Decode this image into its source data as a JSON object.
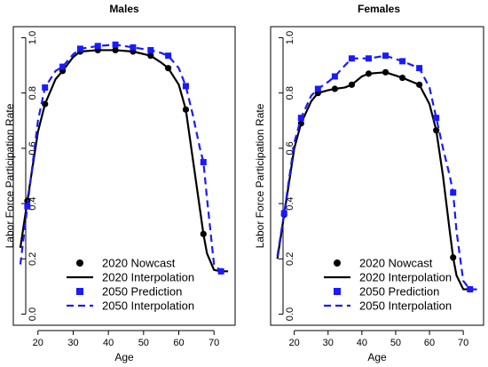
{
  "chart_data": [
    {
      "type": "line",
      "title": "Males",
      "xlabel": "Age",
      "ylabel": "Labor Force Participation Rate",
      "xticks": [
        20,
        30,
        40,
        50,
        60,
        70
      ],
      "yticks": [
        0.0,
        0.2,
        0.4,
        0.6,
        0.8,
        1.0
      ],
      "ytick_labels": [
        "0.0",
        "0.2",
        "0.4",
        "0.6",
        "0.8",
        "1.0"
      ],
      "xlim": [
        13,
        76
      ],
      "ylim": [
        -0.04,
        1.04
      ],
      "legend_position": "bottom-left",
      "grid": false,
      "series": [
        {
          "name": "2020 Nowcast",
          "style": "points-circle",
          "color": "#000000",
          "x": [
            17,
            22,
            27,
            32,
            37,
            42,
            47,
            52,
            57,
            62,
            67,
            72
          ],
          "y": [
            0.41,
            0.76,
            0.88,
            0.95,
            0.955,
            0.955,
            0.95,
            0.935,
            0.89,
            0.74,
            0.29,
            0.155
          ]
        },
        {
          "name": "2020 Interpolation",
          "style": "solid-line",
          "color": "#000000",
          "x": [
            15,
            17,
            20,
            22,
            25,
            27,
            30,
            32,
            37,
            42,
            47,
            52,
            55,
            57,
            60,
            62,
            64,
            66,
            67,
            68,
            70,
            72,
            74
          ],
          "y": [
            0.24,
            0.41,
            0.66,
            0.76,
            0.85,
            0.88,
            0.93,
            0.95,
            0.955,
            0.955,
            0.95,
            0.935,
            0.91,
            0.89,
            0.83,
            0.74,
            0.56,
            0.38,
            0.29,
            0.22,
            0.16,
            0.155,
            0.155
          ]
        },
        {
          "name": "2050 Prediction",
          "style": "points-square",
          "color": "#1a1aff",
          "x": [
            17,
            22,
            27,
            32,
            37,
            42,
            47,
            52,
            57,
            62,
            67,
            72
          ],
          "y": [
            0.39,
            0.82,
            0.895,
            0.96,
            0.97,
            0.975,
            0.965,
            0.955,
            0.935,
            0.825,
            0.55,
            0.155
          ]
        },
        {
          "name": "2050 Interpolation",
          "style": "dashed-line",
          "color": "#1a1aff",
          "x": [
            15,
            17,
            20,
            22,
            25,
            27,
            30,
            32,
            37,
            42,
            47,
            52,
            55,
            57,
            60,
            62,
            64,
            66,
            67,
            68,
            70,
            72,
            74
          ],
          "y": [
            0.18,
            0.39,
            0.7,
            0.82,
            0.88,
            0.895,
            0.94,
            0.96,
            0.97,
            0.975,
            0.965,
            0.955,
            0.945,
            0.935,
            0.89,
            0.825,
            0.72,
            0.6,
            0.55,
            0.42,
            0.18,
            0.155,
            0.155
          ]
        }
      ]
    },
    {
      "type": "line",
      "title": "Females",
      "xlabel": "Age",
      "ylabel": "Labor Force Participation Rate",
      "xticks": [
        20,
        30,
        40,
        50,
        60,
        70
      ],
      "yticks": [
        0.0,
        0.2,
        0.4,
        0.6,
        0.8,
        1.0
      ],
      "ytick_labels": [
        "0.0",
        "0.2",
        "0.4",
        "0.6",
        "0.8",
        "1.0"
      ],
      "xlim": [
        13,
        76
      ],
      "ylim": [
        -0.04,
        1.04
      ],
      "legend_position": "bottom-left",
      "grid": false,
      "series": [
        {
          "name": "2020 Nowcast",
          "style": "points-circle",
          "color": "#000000",
          "x": [
            17,
            22,
            27,
            32,
            37,
            42,
            47,
            52,
            57,
            62,
            67,
            72
          ],
          "y": [
            0.36,
            0.69,
            0.8,
            0.815,
            0.83,
            0.87,
            0.875,
            0.855,
            0.83,
            0.665,
            0.205,
            0.09
          ]
        },
        {
          "name": "2020 Interpolation",
          "style": "solid-line",
          "color": "#000000",
          "x": [
            15,
            17,
            20,
            22,
            25,
            27,
            30,
            32,
            35,
            37,
            40,
            42,
            47,
            52,
            55,
            57,
            60,
            62,
            64,
            66,
            67,
            68,
            70,
            72,
            74
          ],
          "y": [
            0.2,
            0.36,
            0.6,
            0.69,
            0.77,
            0.8,
            0.81,
            0.815,
            0.82,
            0.83,
            0.86,
            0.87,
            0.875,
            0.855,
            0.84,
            0.83,
            0.76,
            0.665,
            0.5,
            0.3,
            0.205,
            0.14,
            0.09,
            0.09,
            0.09
          ]
        },
        {
          "name": "2050 Prediction",
          "style": "points-square",
          "color": "#1a1aff",
          "x": [
            17,
            22,
            27,
            32,
            37,
            42,
            47,
            52,
            57,
            62,
            67,
            72
          ],
          "y": [
            0.365,
            0.71,
            0.815,
            0.86,
            0.925,
            0.925,
            0.935,
            0.915,
            0.89,
            0.71,
            0.44,
            0.09
          ]
        },
        {
          "name": "2050 Interpolation",
          "style": "dashed-line",
          "color": "#1a1aff",
          "x": [
            15,
            17,
            20,
            22,
            25,
            27,
            30,
            32,
            35,
            37,
            40,
            42,
            47,
            52,
            55,
            57,
            60,
            62,
            64,
            66,
            67,
            68,
            70,
            72,
            74
          ],
          "y": [
            0.21,
            0.365,
            0.62,
            0.71,
            0.79,
            0.815,
            0.84,
            0.86,
            0.9,
            0.925,
            0.925,
            0.925,
            0.935,
            0.915,
            0.9,
            0.89,
            0.82,
            0.71,
            0.6,
            0.5,
            0.44,
            0.3,
            0.12,
            0.09,
            0.09
          ]
        }
      ]
    }
  ]
}
